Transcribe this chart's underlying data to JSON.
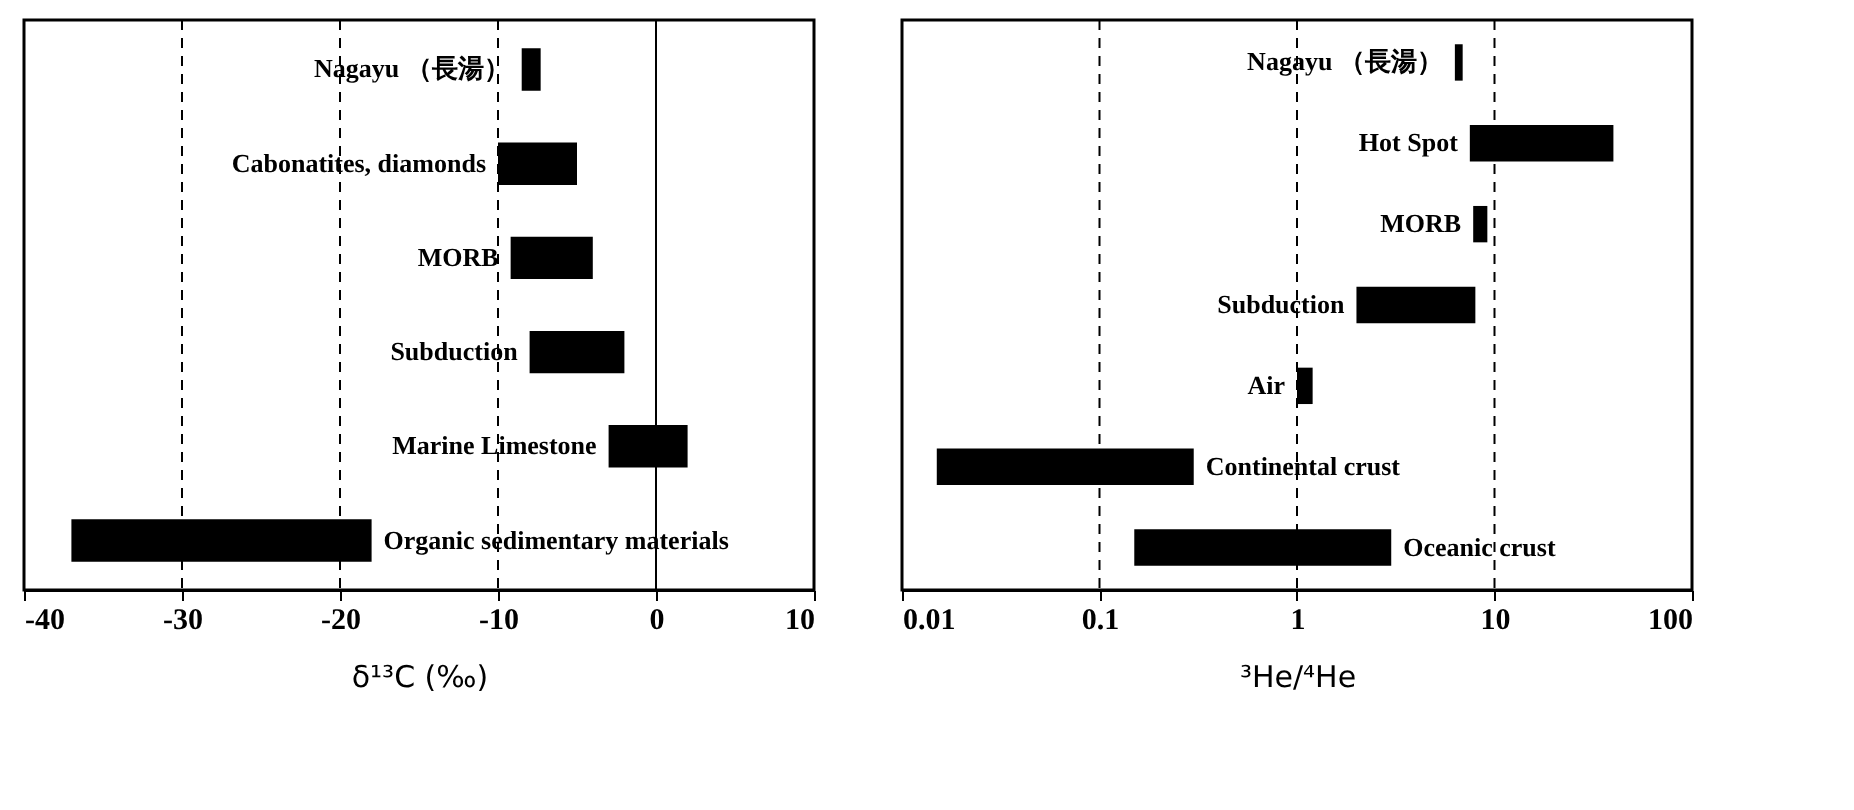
{
  "chart_data": [
    {
      "type": "bar",
      "orientation": "horizontal",
      "xlabel": "δ¹³C (‰)",
      "categories": [
        "Nagayu （長湯）",
        "Cabonatites, diamonds",
        "MORB",
        "Subduction",
        "Marine Limestone",
        "Organic sedimentary materials"
      ],
      "base": [
        -8.5,
        -10,
        -9.2,
        -8,
        -3,
        -37
      ],
      "values": [
        1.2,
        5,
        5.2,
        6,
        5,
        19
      ],
      "color": "#000000",
      "xlim": [
        -40,
        10
      ],
      "xticks": [
        -40,
        -30,
        -20,
        -10,
        0,
        10
      ],
      "tick_labels": "x",
      "grid": false,
      "ref_lines": [
        {
          "axis": "x",
          "value": -30,
          "line_style": "dashed"
        },
        {
          "axis": "x",
          "value": -20,
          "line_style": "dashed"
        },
        {
          "axis": "x",
          "value": -10,
          "line_style": "dashed"
        },
        {
          "axis": "x",
          "value": 0,
          "line_style": "solid"
        }
      ]
    },
    {
      "type": "bar",
      "orientation": "horizontal",
      "xlabel": "³He/⁴He",
      "log": "x",
      "categories": [
        "Nagayu （長湯）",
        "Hot Spot",
        "MORB",
        "Subduction",
        "Air",
        "Continental crust",
        "Oceanic crust"
      ],
      "base": [
        6.3,
        7.5,
        7.8,
        2,
        1,
        0.015,
        0.15
      ],
      "values": [
        0.6,
        32.5,
        1.4,
        6,
        0.2,
        0.285,
        2.85
      ],
      "color": "#000000",
      "xlim": [
        0.01,
        100
      ],
      "xticks": [
        0.01,
        0.1,
        1,
        10,
        100
      ],
      "tick_labels": "x",
      "grid": false,
      "ref_lines": [
        {
          "axis": "x",
          "value": 0.1,
          "line_style": "dashed"
        },
        {
          "axis": "x",
          "value": 1,
          "line_style": "dashed"
        },
        {
          "axis": "x",
          "value": 10,
          "line_style": "dashed"
        }
      ]
    }
  ]
}
